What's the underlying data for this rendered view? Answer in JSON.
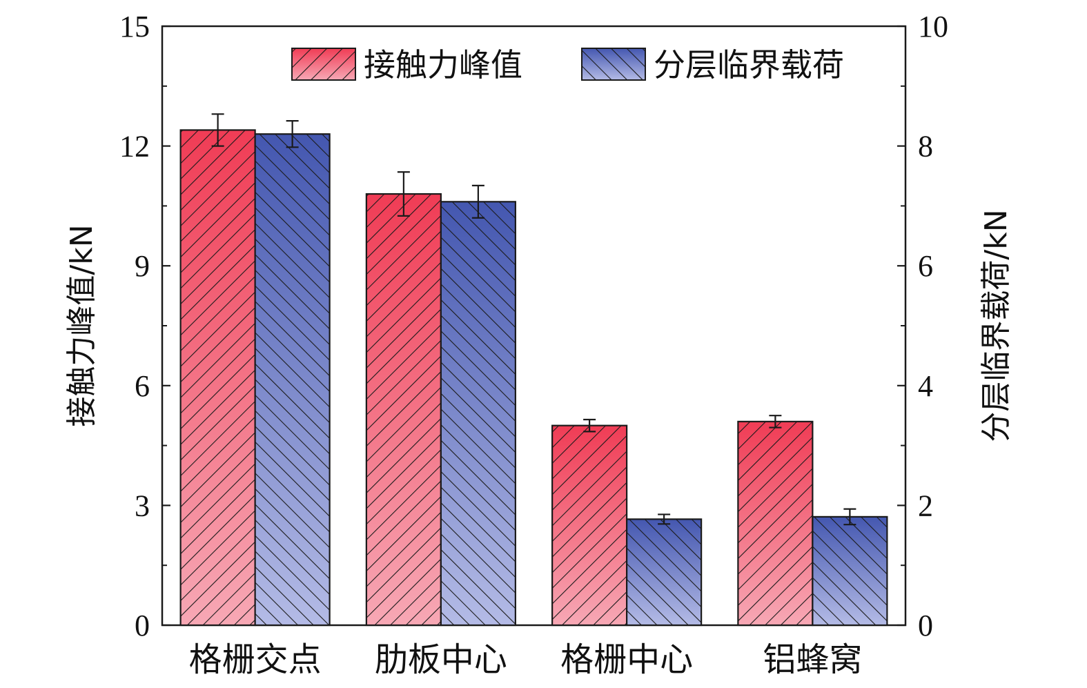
{
  "chart_data": {
    "type": "bar",
    "categories": [
      "格栅交点",
      "肋板中心",
      "格栅中心",
      "铝蜂窝"
    ],
    "series": [
      {
        "name": "接触力峰值",
        "axis": "left",
        "values": [
          12.4,
          10.8,
          5.0,
          5.1
        ],
        "errors": [
          0.4,
          0.55,
          0.15,
          0.15
        ],
        "color_top": "#f03c55",
        "color_bottom": "#f7a8b5"
      },
      {
        "name": "分层临界载荷",
        "axis": "right",
        "values": [
          8.2,
          7.07,
          1.77,
          1.81
        ],
        "errors": [
          0.22,
          0.27,
          0.08,
          0.13
        ],
        "color_top": "#4457b0",
        "color_bottom": "#b4bbe6"
      }
    ],
    "ylabel_left": "接触力峰值/kN",
    "ylabel_right": "分层临界载荷/kN",
    "ylim_left": [
      0,
      15
    ],
    "ylim_right": [
      0,
      10
    ],
    "yticks_left": [
      "0",
      "3",
      "6",
      "9",
      "12",
      "15"
    ],
    "yticks_right": [
      "0",
      "2",
      "4",
      "6",
      "8",
      "10"
    ],
    "legend_position": "top-right",
    "grid": false
  }
}
